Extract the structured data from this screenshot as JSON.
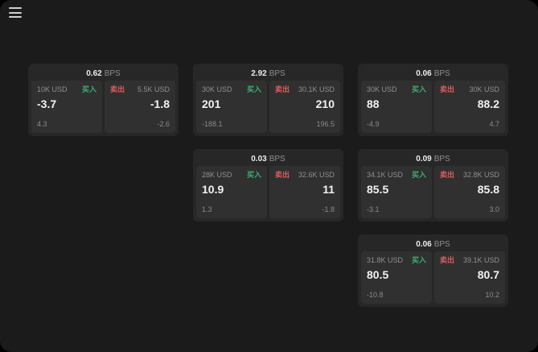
{
  "window": {
    "background": "#1b1b1b"
  },
  "menu": {
    "icon": "hamburger-icon"
  },
  "colors": {
    "buy": "#3fae6e",
    "sell": "#e05c5c",
    "card": "#272727",
    "panel": "#303030"
  },
  "cards": [
    {
      "spread": "0.62",
      "bps": "BPS",
      "buy": {
        "size": "10K USD",
        "label": "买入",
        "price": "-3.7",
        "delta": "4.3"
      },
      "sell": {
        "label": "卖出",
        "size": "5.5K USD",
        "price": "-1.8",
        "delta": "-2.6"
      }
    },
    {
      "spread": "2.92",
      "bps": "BPS",
      "buy": {
        "size": "30K USD",
        "label": "买入",
        "price": "201",
        "delta": "-188.1"
      },
      "sell": {
        "label": "卖出",
        "size": "30.1K USD",
        "price": "210",
        "delta": "196.5"
      }
    },
    {
      "spread": "0.06",
      "bps": "BPS",
      "buy": {
        "size": "30K USD",
        "label": "买入",
        "price": "88",
        "delta": "-4.9"
      },
      "sell": {
        "label": "卖出",
        "size": "30K USD",
        "price": "88.2",
        "delta": "4.7"
      }
    },
    {
      "spread": "0.03",
      "bps": "BPS",
      "buy": {
        "size": "28K USD",
        "label": "买入",
        "price": "10.9",
        "delta": "1.3"
      },
      "sell": {
        "label": "卖出",
        "size": "32.6K USD",
        "price": "11",
        "delta": "-1.8"
      }
    },
    {
      "spread": "0.09",
      "bps": "BPS",
      "buy": {
        "size": "34.1K USD",
        "label": "买入",
        "price": "85.5",
        "delta": "-3.1"
      },
      "sell": {
        "label": "卖出",
        "size": "32.8K USD",
        "price": "85.8",
        "delta": "3.0"
      }
    },
    {
      "spread": "0.06",
      "bps": "BPS",
      "buy": {
        "size": "31.8K USD",
        "label": "买入",
        "price": "80.5",
        "delta": "-10.8"
      },
      "sell": {
        "label": "卖出",
        "size": "39.1K USD",
        "price": "80.7",
        "delta": "10.2"
      }
    }
  ]
}
